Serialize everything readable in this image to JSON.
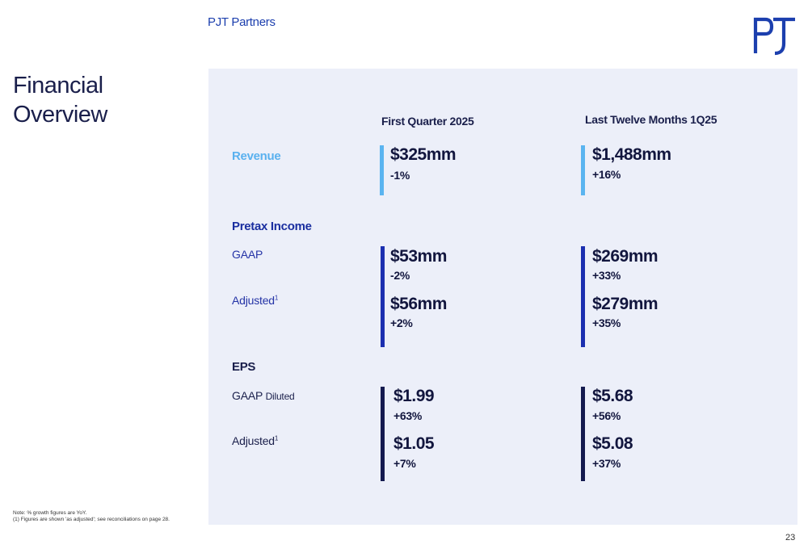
{
  "header": {
    "brand": "PJT Partners",
    "logo_icon": "pjt-logo-icon"
  },
  "title_line1": "Financial",
  "title_line2": "Overview",
  "columns": {
    "q": "First Quarter 2025",
    "ltm": "Last Twelve Months 1Q25"
  },
  "revenue": {
    "label": "Revenue",
    "q_value": "$325mm",
    "q_change": "-1%",
    "ltm_value": "$1,488mm",
    "ltm_change": "+16%"
  },
  "pretax": {
    "label": "Pretax Income",
    "gaap_label": "GAAP",
    "adj_label": "Adjusted",
    "adj_sup": "1",
    "gaap_q_value": "$53mm",
    "gaap_q_change": "-2%",
    "gaap_ltm_value": "$269mm",
    "gaap_ltm_change": "+33%",
    "adj_q_value": "$56mm",
    "adj_q_change": "+2%",
    "adj_ltm_value": "$279mm",
    "adj_ltm_change": "+35%"
  },
  "eps": {
    "label": "EPS",
    "gaap_label": "GAAP",
    "gaap_label_suffix": "Diluted",
    "adj_label": "Adjusted",
    "adj_sup": "1",
    "gaap_q_value": "$1.99",
    "gaap_q_change": "+63%",
    "gaap_ltm_value": "$5.68",
    "gaap_ltm_change": "+56%",
    "adj_q_value": "$1.05",
    "adj_q_change": "+7%",
    "adj_ltm_value": "$5.08",
    "adj_ltm_change": "+37%"
  },
  "notes": {
    "line1": "Note: % growth figures are YoY.",
    "line2": "(1) Figures are shown 'as adjusted'; see reconciliations on page 28."
  },
  "page_number": "23",
  "colors": {
    "revenue_bar": "#5ab4f0",
    "pretax_bar": "#1b2fb0",
    "eps_bar": "#141a4f",
    "panel_bg": "#eceff9"
  }
}
